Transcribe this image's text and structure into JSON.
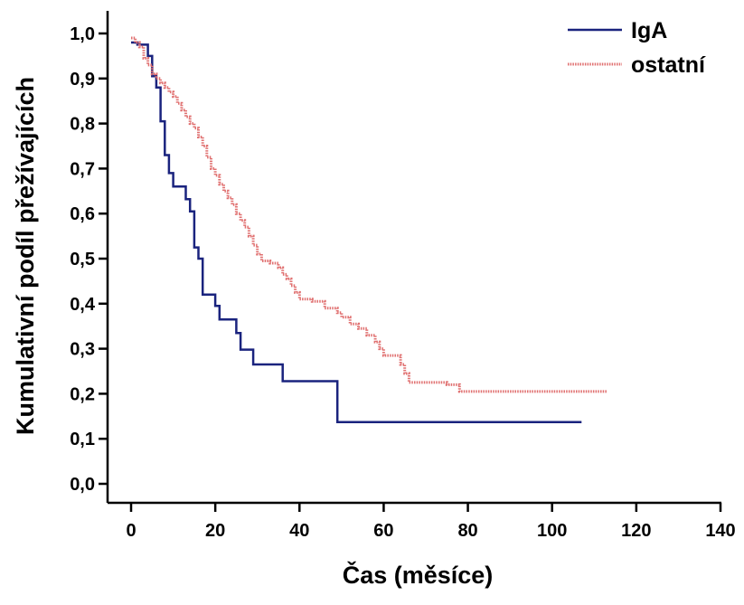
{
  "chart_data": {
    "type": "line",
    "step": true,
    "title": "",
    "xlabel": "Čas (měsíce)",
    "ylabel": "Kumulativní podíl přežívajících",
    "xlim": [
      0,
      140
    ],
    "ylim": [
      0,
      1.0
    ],
    "x_ticks": [
      0,
      20,
      40,
      60,
      80,
      100,
      120,
      140
    ],
    "x_tick_labels": [
      "0",
      "20",
      "40",
      "60",
      "80",
      "100",
      "120",
      "140"
    ],
    "y_ticks": [
      0,
      0.1,
      0.2,
      0.3,
      0.4,
      0.5,
      0.6,
      0.7,
      0.8,
      0.9,
      1.0
    ],
    "y_tick_labels": [
      "0,0",
      "0,1",
      "0,2",
      "0,3",
      "0,4",
      "0,5",
      "0,6",
      "0,7",
      "0,8",
      "0,9",
      "1,0"
    ],
    "grid": false,
    "legend_position": "top-right",
    "series": [
      {
        "name": "IgA",
        "color": "#1a237e",
        "style": "solid",
        "points": [
          [
            0,
            0.98
          ],
          [
            1.5,
            0.975
          ],
          [
            4,
            0.95
          ],
          [
            5,
            0.905
          ],
          [
            6,
            0.88
          ],
          [
            7,
            0.805
          ],
          [
            8,
            0.73
          ],
          [
            9,
            0.69
          ],
          [
            10,
            0.66
          ],
          [
            13,
            0.632
          ],
          [
            14,
            0.605
          ],
          [
            15,
            0.525
          ],
          [
            16,
            0.5
          ],
          [
            17,
            0.42
          ],
          [
            20,
            0.395
          ],
          [
            21,
            0.365
          ],
          [
            25,
            0.335
          ],
          [
            26,
            0.298
          ],
          [
            29,
            0.265
          ],
          [
            36,
            0.228
          ],
          [
            49,
            0.137
          ],
          [
            107,
            0.137
          ]
        ]
      },
      {
        "name": "ostatní",
        "color": "#e07070",
        "style": "dotted",
        "points": [
          [
            0,
            0.99
          ],
          [
            1,
            0.98
          ],
          [
            2,
            0.97
          ],
          [
            3,
            0.945
          ],
          [
            4,
            0.93
          ],
          [
            5,
            0.91
          ],
          [
            6,
            0.9
          ],
          [
            7,
            0.89
          ],
          [
            8,
            0.88
          ],
          [
            9,
            0.87
          ],
          [
            10,
            0.86
          ],
          [
            11,
            0.845
          ],
          [
            12,
            0.83
          ],
          [
            13,
            0.815
          ],
          [
            14,
            0.8
          ],
          [
            15,
            0.79
          ],
          [
            16,
            0.77
          ],
          [
            17,
            0.75
          ],
          [
            18,
            0.725
          ],
          [
            19,
            0.7
          ],
          [
            20,
            0.685
          ],
          [
            21,
            0.665
          ],
          [
            22,
            0.65
          ],
          [
            23,
            0.635
          ],
          [
            24,
            0.62
          ],
          [
            25,
            0.6
          ],
          [
            26,
            0.585
          ],
          [
            27,
            0.57
          ],
          [
            28,
            0.55
          ],
          [
            29,
            0.53
          ],
          [
            30,
            0.51
          ],
          [
            31,
            0.495
          ],
          [
            33,
            0.49
          ],
          [
            35,
            0.48
          ],
          [
            36,
            0.465
          ],
          [
            37,
            0.455
          ],
          [
            38,
            0.44
          ],
          [
            39,
            0.425
          ],
          [
            40,
            0.41
          ],
          [
            43,
            0.405
          ],
          [
            46,
            0.39
          ],
          [
            49,
            0.38
          ],
          [
            50,
            0.37
          ],
          [
            52,
            0.355
          ],
          [
            54,
            0.345
          ],
          [
            56,
            0.33
          ],
          [
            58,
            0.315
          ],
          [
            59,
            0.3
          ],
          [
            60,
            0.285
          ],
          [
            64,
            0.265
          ],
          [
            65,
            0.245
          ],
          [
            66,
            0.225
          ],
          [
            75,
            0.22
          ],
          [
            78,
            0.205
          ],
          [
            113,
            0.205
          ]
        ]
      }
    ]
  }
}
